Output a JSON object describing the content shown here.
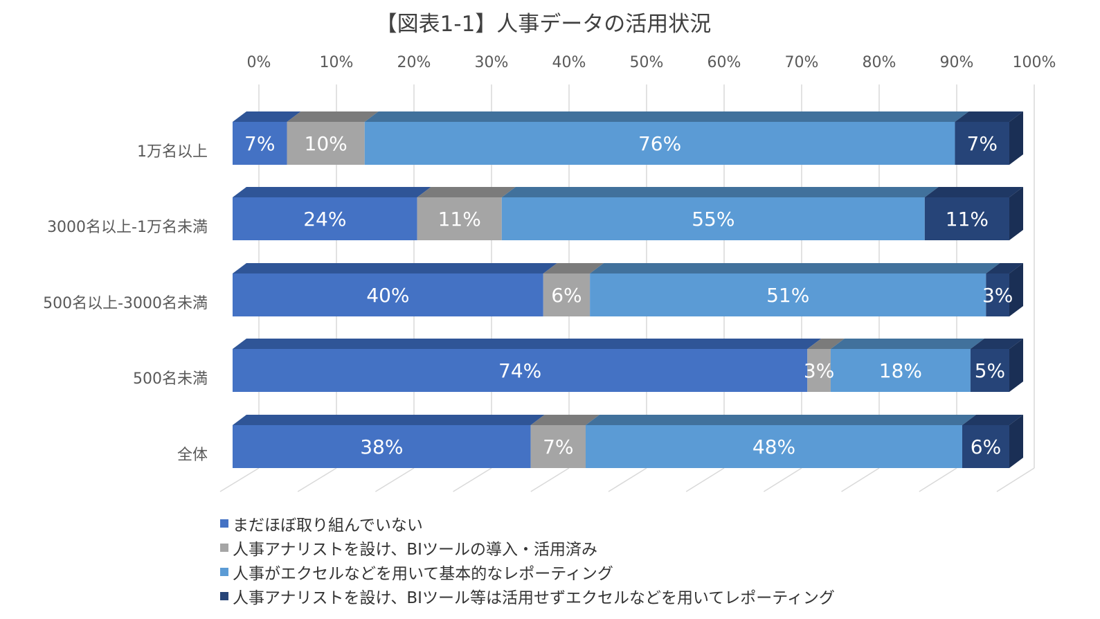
{
  "chart_data": {
    "type": "bar",
    "orientation": "horizontal",
    "stacked": "100%",
    "title": "【図表1-1】人事データの活用状況",
    "categories": [
      "1万名以上",
      "3000名以上-1万名未満",
      "500名以上-3000名未満",
      "500名未満",
      "全体"
    ],
    "series": [
      {
        "name": "まだほぼ取り組んでいない",
        "color": "#4472c4",
        "top_color": "#2f5597",
        "side_color": "#2f5597",
        "values": [
          7,
          24,
          40,
          74,
          38
        ]
      },
      {
        "name": "人事アナリストを設け、BIツールの導入・活用済み",
        "color": "#a5a5a5",
        "top_color": "#7b7b7b",
        "side_color": "#7b7b7b",
        "values": [
          10,
          11,
          6,
          3,
          7
        ]
      },
      {
        "name": "人事がエクセルなどを用いて基本的なレポーティング",
        "color": "#5b9bd5",
        "top_color": "#41719c",
        "side_color": "#41719c",
        "values": [
          76,
          55,
          51,
          18,
          48
        ]
      },
      {
        "name": "人事アナリストを設け、BIツール等は活用せずエクセルなどを用いてレポーティング",
        "color": "#264478",
        "top_color": "#1f3864",
        "side_color": "#1a2f55",
        "values": [
          7,
          11,
          3,
          5,
          6
        ]
      }
    ],
    "data_labels": [
      [
        "7%",
        "10%",
        "76%",
        "7%"
      ],
      [
        "24%",
        "11%",
        "55%",
        "11%"
      ],
      [
        "40%",
        "6%",
        "51%",
        "3%"
      ],
      [
        "74%",
        "3%",
        "18%",
        "5%"
      ],
      [
        "38%",
        "7%",
        "48%",
        "6%"
      ]
    ],
    "x_ticks": [
      "0%",
      "10%",
      "20%",
      "30%",
      "40%",
      "50%",
      "60%",
      "70%",
      "80%",
      "90%",
      "100%"
    ],
    "xlim": [
      0,
      100
    ],
    "grid": true,
    "legend_position": "bottom-left",
    "gridline_color": "#d9d9d9",
    "label_color": "#595959"
  }
}
